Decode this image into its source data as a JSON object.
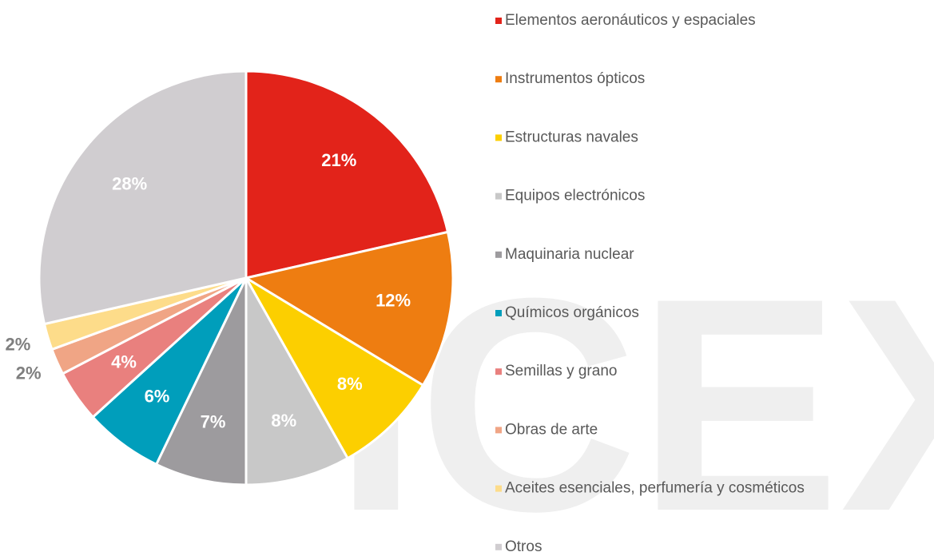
{
  "chart_data": {
    "type": "pie",
    "watermark": "ICEX",
    "categories": [
      "Elementos aeronáuticos y espaciales",
      "Instrumentos ópticos",
      "Estructuras navales",
      "Equipos electrónicos",
      "Maquinaria nuclear",
      "Químicos orgánicos",
      "Semillas y grano",
      "Obras de arte",
      "Aceites esenciales, perfumería y cosméticos",
      "Otros"
    ],
    "values": [
      21,
      12,
      8,
      8,
      7,
      6,
      4,
      2,
      2,
      28
    ],
    "value_labels": [
      "21%",
      "12%",
      "8%",
      "8%",
      "7%",
      "6%",
      "4%",
      "2%",
      "2%",
      "28%"
    ],
    "colors": [
      "#e2231a",
      "#ee7d11",
      "#fccf00",
      "#c8c8c8",
      "#9d9b9e",
      "#009ebb",
      "#e9807e",
      "#f0a585",
      "#fddc8a",
      "#d0cdd0"
    ],
    "legend": "right"
  }
}
